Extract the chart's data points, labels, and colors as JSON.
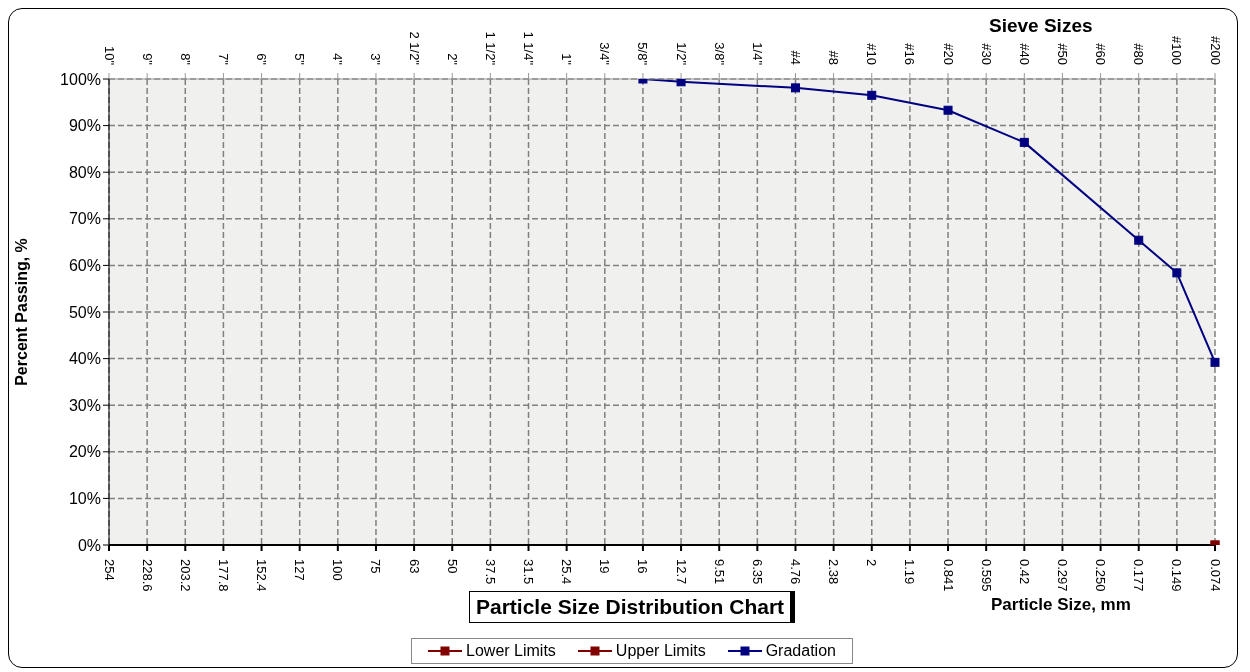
{
  "chart_data": {
    "type": "line",
    "title": "Particle Size Distribution Chart",
    "xlabel": "Particle Size, mm",
    "x2label": "Sieve Sizes",
    "ylabel": "Percent Passing, %",
    "categories": [
      "254",
      "228.6",
      "203.2",
      "177.8",
      "152.4",
      "127",
      "100",
      "75",
      "63",
      "50",
      "37.5",
      "31.5",
      "25.4",
      "19",
      "16",
      "12.7",
      "9.51",
      "6.35",
      "4.76",
      "2.38",
      "2",
      "1.19",
      "0.841",
      "0.595",
      "0.42",
      "0.297",
      "0.250",
      "0.177",
      "0.149",
      "0.074"
    ],
    "annotations": [
      "10\"",
      "9\"",
      "8\"",
      "7\"",
      "6\"",
      "5\"",
      "4\"",
      "3\"",
      "2 1/2\"",
      "2\"",
      "1 1/2\"",
      "1 1/4\"",
      "1\"",
      "3/4\"",
      "5/8\"",
      "1/2\"",
      "3/8\"",
      "1/4\"",
      "#4",
      "#8",
      "#10",
      "#16",
      "#20",
      "#30",
      "#40",
      "#50",
      "#60",
      "#80",
      "#100",
      "#200"
    ],
    "series": [
      {
        "name": "Lower Limits",
        "color": "#800000",
        "values": [
          null,
          null,
          null,
          null,
          null,
          null,
          null,
          null,
          null,
          null,
          null,
          null,
          null,
          null,
          null,
          null,
          null,
          null,
          null,
          null,
          null,
          null,
          null,
          null,
          null,
          null,
          null,
          null,
          null,
          0
        ]
      },
      {
        "name": "Upper Limits",
        "color": "#800000",
        "values": [
          null,
          null,
          null,
          null,
          null,
          null,
          null,
          null,
          null,
          null,
          null,
          null,
          null,
          null,
          null,
          null,
          null,
          null,
          null,
          null,
          null,
          null,
          null,
          null,
          null,
          null,
          null,
          null,
          null,
          0
        ]
      },
      {
        "name": "Gradation",
        "color": "#000080",
        "values": [
          null,
          null,
          null,
          null,
          null,
          null,
          null,
          null,
          null,
          null,
          null,
          null,
          null,
          null,
          100,
          99.4,
          null,
          null,
          98.1,
          null,
          96.5,
          null,
          93.3,
          null,
          86.4,
          null,
          null,
          65.4,
          58.4,
          39.2
        ]
      }
    ],
    "ylim": [
      0,
      100
    ],
    "yticks": [
      {
        "value": 0,
        "label": "0%"
      },
      {
        "value": 10,
        "label": "10%"
      },
      {
        "value": 20,
        "label": "20%"
      },
      {
        "value": 30,
        "label": "30%"
      },
      {
        "value": 40,
        "label": "40%"
      },
      {
        "value": 50,
        "label": "50%"
      },
      {
        "value": 60,
        "label": "60%"
      },
      {
        "value": 70,
        "label": "70%"
      },
      {
        "value": 80,
        "label": "80%"
      },
      {
        "value": 90,
        "label": "90%"
      },
      {
        "value": 100,
        "label": "100%"
      }
    ],
    "grid": true,
    "legend": "bottom",
    "marker": "square",
    "line_style": "solid"
  }
}
